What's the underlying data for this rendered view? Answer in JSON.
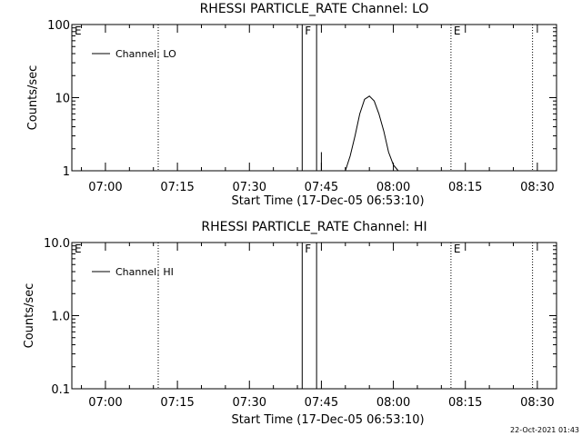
{
  "footer_timestamp": "22-Oct-2021 01:43",
  "chart_data": [
    {
      "type": "line",
      "title": "RHESSI PARTICLE_RATE Channel: LO",
      "xlabel": "Start Time (17-Dec-05 06:53:10)",
      "ylabel": "Counts/sec",
      "yscale": "log",
      "ylim": [
        1,
        100
      ],
      "yticks": [
        {
          "value": 1,
          "label": "1"
        },
        {
          "value": 10,
          "label": "10"
        },
        {
          "value": 100,
          "label": "100"
        }
      ],
      "xlim": [
        "06:53",
        "08:34"
      ],
      "xticks": [
        "07:00",
        "07:15",
        "07:30",
        "07:45",
        "08:00",
        "08:15",
        "08:30"
      ],
      "legend": {
        "label": "Channel: LO",
        "placement": "top-left"
      },
      "markers": [
        {
          "time": "06:53",
          "label": "E",
          "style": "none"
        },
        {
          "time": "07:11",
          "label": "",
          "style": "dotted"
        },
        {
          "time": "07:41",
          "label": "F",
          "style": "solid"
        },
        {
          "time": "07:44",
          "label": "",
          "style": "solid"
        },
        {
          "time": "08:12",
          "label": "E",
          "style": "dotted"
        },
        {
          "time": "08:29",
          "label": "",
          "style": "dotted"
        }
      ],
      "series": [
        {
          "name": "Channel: LO",
          "segments": [
            {
              "x": [
                "07:45",
                "07:45"
              ],
              "y": [
                1.0,
                1.8
              ]
            },
            {
              "x": [
                "07:50",
                "07:51",
                "07:52",
                "07:53",
                "07:54",
                "07:55",
                "07:56",
                "07:57",
                "07:58",
                "07:59",
                "08:00",
                "08:01",
                "08:02"
              ],
              "y": [
                1.0,
                1.6,
                3.0,
                6.0,
                9.5,
                10.5,
                9.0,
                6.0,
                3.5,
                1.8,
                1.2,
                1.0,
                0.8
              ]
            }
          ]
        }
      ],
      "grid": false
    },
    {
      "type": "line",
      "title": "RHESSI PARTICLE_RATE Channel: HI",
      "xlabel": "Start Time (17-Dec-05 06:53:10)",
      "ylabel": "Counts/sec",
      "yscale": "log",
      "ylim": [
        0.1,
        10
      ],
      "yticks": [
        {
          "value": 0.1,
          "label": "0.1"
        },
        {
          "value": 1,
          "label": "1.0"
        },
        {
          "value": 10,
          "label": "10.0"
        }
      ],
      "xlim": [
        "06:53",
        "08:34"
      ],
      "xticks": [
        "07:00",
        "07:15",
        "07:30",
        "07:45",
        "08:00",
        "08:15",
        "08:30"
      ],
      "legend": {
        "label": "Channel: HI",
        "placement": "top-left"
      },
      "markers": [
        {
          "time": "06:53",
          "label": "E",
          "style": "none"
        },
        {
          "time": "07:11",
          "label": "",
          "style": "dotted"
        },
        {
          "time": "07:41",
          "label": "F",
          "style": "solid"
        },
        {
          "time": "07:44",
          "label": "",
          "style": "solid"
        },
        {
          "time": "08:12",
          "label": "E",
          "style": "dotted"
        },
        {
          "time": "08:29",
          "label": "",
          "style": "dotted"
        }
      ],
      "series": [
        {
          "name": "Channel: HI",
          "segments": []
        }
      ],
      "grid": false
    }
  ]
}
